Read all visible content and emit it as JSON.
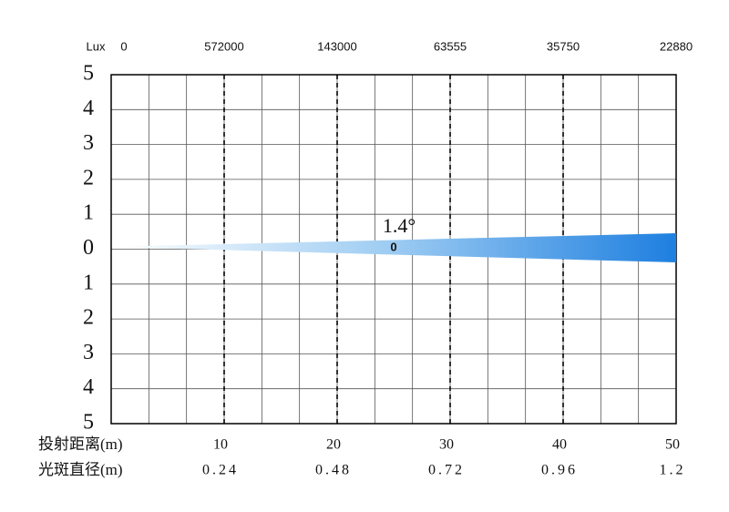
{
  "chart_data": {
    "type": "beam",
    "lux_label": "Lux",
    "lux": [
      0,
      572000,
      143000,
      63555,
      35750,
      22880
    ],
    "xlim": [
      0,
      50
    ],
    "xticks": [
      10,
      20,
      30,
      40,
      50
    ],
    "ylim": [
      -5,
      5
    ],
    "yticks": [
      5,
      4,
      3,
      2,
      1,
      0,
      {
        "value": -1,
        "label": "1"
      },
      {
        "value": -2,
        "label": "2"
      },
      {
        "value": -3,
        "label": "3"
      },
      {
        "value": -4,
        "label": "4"
      },
      {
        "value": -5,
        "label": "5"
      }
    ],
    "distance_label": "投射距离(m)",
    "diameter_label": "光斑直径(m)",
    "diameter": [
      0.24,
      0.48,
      0.72,
      0.96,
      1.2
    ],
    "beam_angle": "1.4°",
    "center_label": "0",
    "color": "#1e7fe0"
  }
}
